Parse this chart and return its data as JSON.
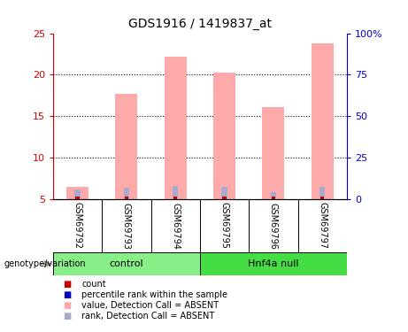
{
  "title": "GDS1916 / 1419837_at",
  "samples": [
    "GSM69792",
    "GSM69793",
    "GSM69794",
    "GSM69795",
    "GSM69796",
    "GSM69797"
  ],
  "pink_bar_values": [
    6.5,
    17.7,
    22.2,
    20.3,
    16.1,
    23.8
  ],
  "red_bar_values": [
    5.35,
    5.35,
    5.35,
    5.35,
    5.35,
    5.35
  ],
  "blue_bar_values": [
    6.2,
    6.4,
    6.6,
    6.5,
    5.9,
    6.5
  ],
  "ylim_left": [
    5,
    25
  ],
  "yticks_left": [
    5,
    10,
    15,
    20,
    25
  ],
  "ytick_labels_left": [
    "5",
    "10",
    "15",
    "20",
    "25"
  ],
  "right_tick_pos": [
    5,
    10,
    15,
    20,
    25
  ],
  "ytick_labels_right": [
    "0",
    "25",
    "50",
    "75",
    "100%"
  ],
  "left_axis_color": "#cc0000",
  "right_axis_color": "#0000cc",
  "bar_color_pink": "#ffaaaa",
  "bar_color_blue": "#aaaacc",
  "bar_color_red": "#cc0000",
  "control_color": "#88ee88",
  "hnf4a_color": "#44dd44",
  "label_area_color": "#cccccc",
  "genotype_label": "genotype/variation",
  "group1_label": "control",
  "group2_label": "Hnf4a null",
  "legend_items": [
    {
      "color": "#cc0000",
      "label": "count"
    },
    {
      "color": "#0000cc",
      "label": "percentile rank within the sample"
    },
    {
      "color": "#ffaaaa",
      "label": "value, Detection Call = ABSENT"
    },
    {
      "color": "#aaaacc",
      "label": "rank, Detection Call = ABSENT"
    }
  ],
  "fig_width": 4.61,
  "fig_height": 3.75,
  "dpi": 100
}
